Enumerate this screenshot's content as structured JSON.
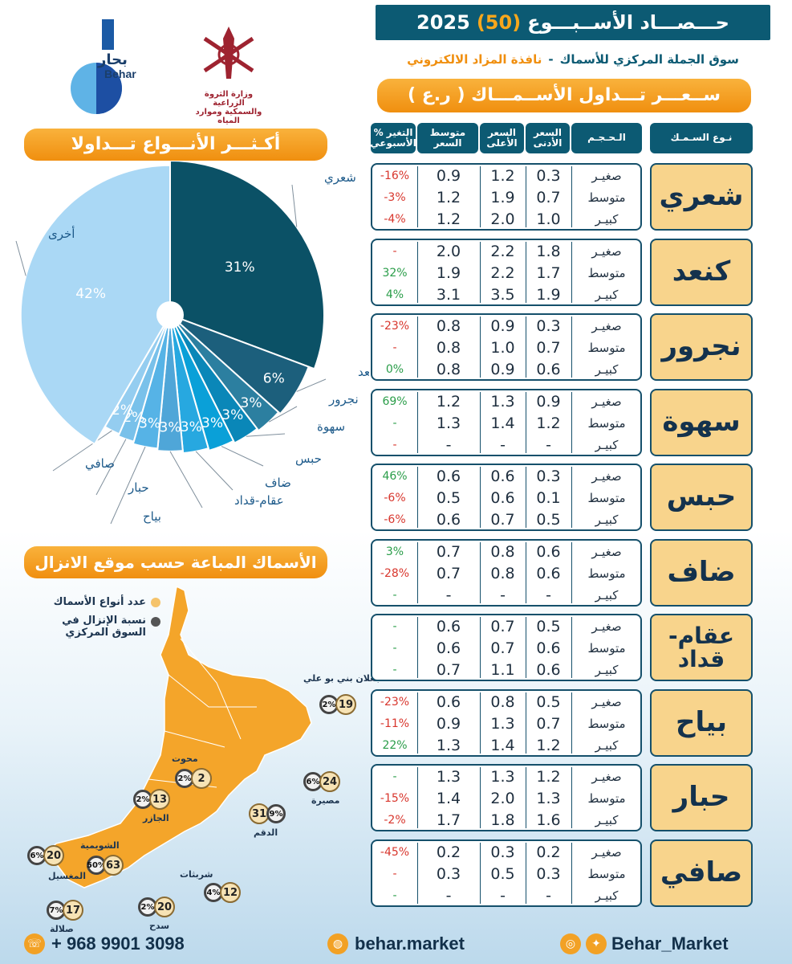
{
  "header": {
    "title_prefix": "حـــصـــاد الأســبـــوع",
    "week": "(50)",
    "year": "2025",
    "subtitle_main": "سوق الجملة المركزي للأسماك",
    "subtitle_sep": "-",
    "subtitle_orange": "نافذة المزاد الالكتروني",
    "price_title": "ســعـــر تـــداول الأســمـــاك ( ر.ع )"
  },
  "logos": {
    "behar_ar": "بحار",
    "behar_en": "Behar",
    "ministry_line1": "وزارة الثروة الزراعية",
    "ministry_line2": "والسمكية وموارد المياه"
  },
  "table_headers": {
    "fish_type": "نـوع السـمـك",
    "size": "الـحـجـم",
    "min_price": "السعر الأدنى",
    "max_price": "السعر الأعلى",
    "avg_price": "متوسط السعر",
    "weekly_change": "% التغير الأسبوعي"
  },
  "fish_table": [
    {
      "name": "شعري",
      "rows": [
        {
          "size": "صغيـر",
          "min": "0.3",
          "max": "1.2",
          "avg": "0.9",
          "chg": "-16%",
          "dir": "neg"
        },
        {
          "size": "متوسط",
          "min": "0.7",
          "max": "1.9",
          "avg": "1.2",
          "chg": "-3%",
          "dir": "neg"
        },
        {
          "size": "كبيـر",
          "min": "1.0",
          "max": "2.0",
          "avg": "1.2",
          "chg": "-4%",
          "dir": "neg"
        }
      ]
    },
    {
      "name": "كنعد",
      "rows": [
        {
          "size": "صغيـر",
          "min": "1.8",
          "max": "2.2",
          "avg": "2.0",
          "chg": "-",
          "dir": "neg"
        },
        {
          "size": "متوسط",
          "min": "1.7",
          "max": "2.2",
          "avg": "1.9",
          "chg": "32%",
          "dir": "pos"
        },
        {
          "size": "كبيـر",
          "min": "1.9",
          "max": "3.5",
          "avg": "3.1",
          "chg": "4%",
          "dir": "pos"
        }
      ]
    },
    {
      "name": "نجرور",
      "rows": [
        {
          "size": "صغيـر",
          "min": "0.3",
          "max": "0.9",
          "avg": "0.8",
          "chg": "-23%",
          "dir": "neg"
        },
        {
          "size": "متوسط",
          "min": "0.7",
          "max": "1.0",
          "avg": "0.8",
          "chg": "-",
          "dir": "neg"
        },
        {
          "size": "كبيـر",
          "min": "0.6",
          "max": "0.9",
          "avg": "0.8",
          "chg": "0%",
          "dir": "pos"
        }
      ]
    },
    {
      "name": "سهوة",
      "rows": [
        {
          "size": "صغيـر",
          "min": "0.9",
          "max": "1.3",
          "avg": "1.2",
          "chg": "69%",
          "dir": "pos"
        },
        {
          "size": "متوسط",
          "min": "1.2",
          "max": "1.4",
          "avg": "1.3",
          "chg": "-",
          "dir": "pos"
        },
        {
          "size": "كبيـر",
          "min": "-",
          "max": "-",
          "avg": "-",
          "chg": "-",
          "dir": "neg"
        }
      ]
    },
    {
      "name": "حبس",
      "rows": [
        {
          "size": "صغيـر",
          "min": "0.3",
          "max": "0.6",
          "avg": "0.6",
          "chg": "46%",
          "dir": "pos"
        },
        {
          "size": "متوسط",
          "min": "0.1",
          "max": "0.6",
          "avg": "0.5",
          "chg": "-6%",
          "dir": "neg"
        },
        {
          "size": "كبيـر",
          "min": "0.5",
          "max": "0.7",
          "avg": "0.6",
          "chg": "-6%",
          "dir": "neg"
        }
      ]
    },
    {
      "name": "ضاف",
      "rows": [
        {
          "size": "صغيـر",
          "min": "0.6",
          "max": "0.8",
          "avg": "0.7",
          "chg": "3%",
          "dir": "pos"
        },
        {
          "size": "متوسط",
          "min": "0.6",
          "max": "0.8",
          "avg": "0.7",
          "chg": "-28%",
          "dir": "neg"
        },
        {
          "size": "كبيـر",
          "min": "-",
          "max": "-",
          "avg": "-",
          "chg": "-",
          "dir": "pos"
        }
      ]
    },
    {
      "name": "عقام- قداد",
      "rows": [
        {
          "size": "صغيـر",
          "min": "0.5",
          "max": "0.7",
          "avg": "0.6",
          "chg": "-",
          "dir": "pos"
        },
        {
          "size": "متوسط",
          "min": "0.6",
          "max": "0.7",
          "avg": "0.6",
          "chg": "-",
          "dir": "pos"
        },
        {
          "size": "كبيـر",
          "min": "0.6",
          "max": "1.1",
          "avg": "0.7",
          "chg": "-",
          "dir": "pos"
        }
      ]
    },
    {
      "name": "بياح",
      "rows": [
        {
          "size": "صغيـر",
          "min": "0.5",
          "max": "0.8",
          "avg": "0.6",
          "chg": "-23%",
          "dir": "neg"
        },
        {
          "size": "متوسط",
          "min": "0.7",
          "max": "1.3",
          "avg": "0.9",
          "chg": "-11%",
          "dir": "neg"
        },
        {
          "size": "كبيـر",
          "min": "1.2",
          "max": "1.4",
          "avg": "1.3",
          "chg": "22%",
          "dir": "pos"
        }
      ]
    },
    {
      "name": "حبار",
      "rows": [
        {
          "size": "صغيـر",
          "min": "1.2",
          "max": "1.3",
          "avg": "1.3",
          "chg": "-",
          "dir": "pos"
        },
        {
          "size": "متوسط",
          "min": "1.3",
          "max": "2.0",
          "avg": "1.4",
          "chg": "-15%",
          "dir": "neg"
        },
        {
          "size": "كبيـر",
          "min": "1.6",
          "max": "1.8",
          "avg": "1.7",
          "chg": "-2%",
          "dir": "neg"
        }
      ]
    },
    {
      "name": "صافي",
      "rows": [
        {
          "size": "صغيـر",
          "min": "0.2",
          "max": "0.3",
          "avg": "0.2",
          "chg": "-45%",
          "dir": "neg"
        },
        {
          "size": "متوسط",
          "min": "0.3",
          "max": "0.5",
          "avg": "0.3",
          "chg": "-",
          "dir": "neg"
        },
        {
          "size": "كبيـر",
          "min": "-",
          "max": "-",
          "avg": "-",
          "chg": "-",
          "dir": "pos"
        }
      ]
    }
  ],
  "chart_data": {
    "type": "pie",
    "title": "أكـثـــر الأنـــواع تـــداولا",
    "slices": [
      {
        "label": "شعري",
        "value": 31,
        "text": "31%",
        "color": "#0b5166"
      },
      {
        "label": "كنعد",
        "value": 6,
        "text": "6%",
        "color": "#1c5f7c"
      },
      {
        "label": "نجرور",
        "value": 3,
        "text": "3%",
        "color": "#2c7fa0"
      },
      {
        "label": "سهوة",
        "value": 3,
        "text": "3%",
        "color": "#0a87b8"
      },
      {
        "label": "حبس",
        "value": 3,
        "text": "3%",
        "color": "#0aa0d8"
      },
      {
        "label": "ضاف",
        "value": 3,
        "text": "3%",
        "color": "#27a8e0"
      },
      {
        "label": "عقام-قداد",
        "value": 3,
        "text": "3%",
        "color": "#4fa6d8"
      },
      {
        "label": "بياح",
        "value": 3,
        "text": "3%",
        "color": "#56b3e6"
      },
      {
        "label": "حبار",
        "value": 2,
        "text": "2%",
        "color": "#79c1ea"
      },
      {
        "label": "صافي",
        "value": 2,
        "text": "2%",
        "color": "#94cdf0"
      },
      {
        "label": "أخرى",
        "value": 42,
        "text": "42%",
        "color": "#aad8f5"
      }
    ]
  },
  "map": {
    "title": "الأسماك المباعة حسب موقع الانزال",
    "legend_count": "عدد أنواع الأسماك",
    "legend_share_1": "نسبة الإنزال في",
    "legend_share_2": "السوق المركزي",
    "sites": [
      {
        "name": "جعلان بني بو علي",
        "pct": "2%",
        "count": "19"
      },
      {
        "name": "محوت",
        "pct": "2%",
        "count": "2"
      },
      {
        "name": "مصيرة",
        "pct": "6%",
        "count": "24"
      },
      {
        "name": "الجازر",
        "pct": "2%",
        "count": "13"
      },
      {
        "name": "الدقم",
        "pct": "9%",
        "count": "31"
      },
      {
        "name": "الشويمية",
        "pct": "50%",
        "count": "63"
      },
      {
        "name": "المغسيل",
        "pct": "6%",
        "count": "20"
      },
      {
        "name": "شربثات",
        "pct": "4%",
        "count": "12"
      },
      {
        "name": "سدح",
        "pct": "2%",
        "count": "20"
      },
      {
        "name": "صلالة",
        "pct": "7%",
        "count": "17"
      }
    ]
  },
  "footer": {
    "phone": "+ 968 9901 3098",
    "website": "behar.market",
    "social": "Behar_Market",
    "icons": [
      "whatsapp-icon",
      "globe-icon",
      "instagram-icon",
      "twitter-icon"
    ]
  }
}
